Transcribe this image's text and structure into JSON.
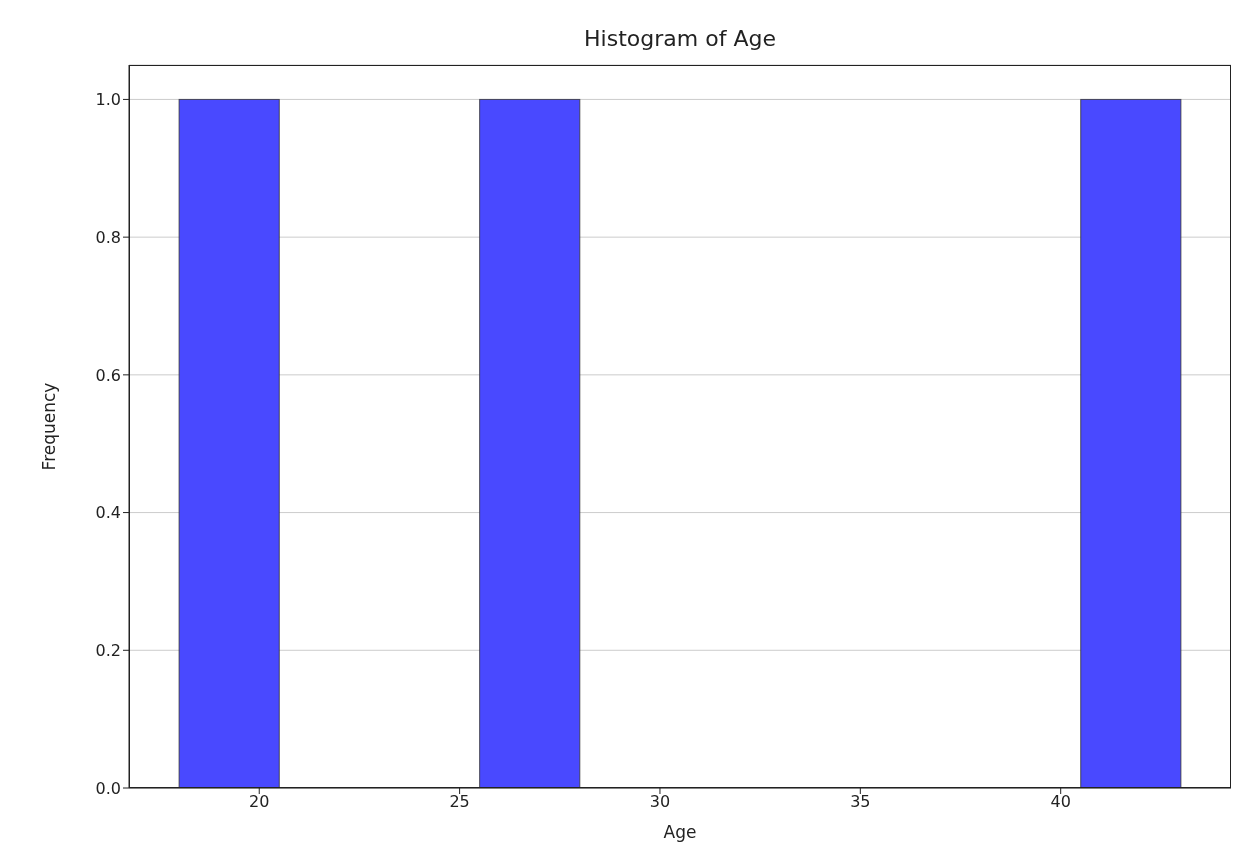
{
  "chart_data": {
    "type": "histogram",
    "title": "Histogram of Age",
    "xlabel": "Age",
    "ylabel": "Frequency",
    "bins": [
      18,
      20.5,
      23,
      25.5,
      28,
      30.5,
      33,
      35.5,
      38,
      40.5,
      43
    ],
    "values": [
      1,
      0,
      0,
      1,
      0,
      0,
      0,
      0,
      0,
      1
    ],
    "color": "#4949ff",
    "xlim": [
      16.75,
      44.25
    ],
    "xticks": [
      20,
      25,
      30,
      35,
      40
    ],
    "ylim": [
      0,
      1.05
    ],
    "yticks": [
      {
        "value": 0,
        "label": "0.0"
      },
      {
        "value": 0.2,
        "label": "0.2"
      },
      {
        "value": 0.4,
        "label": "0.4"
      },
      {
        "value": 0.6,
        "label": "0.6"
      },
      {
        "value": 0.8,
        "label": "0.8"
      },
      {
        "value": 1,
        "label": "1.0"
      }
    ],
    "grid": "y"
  }
}
